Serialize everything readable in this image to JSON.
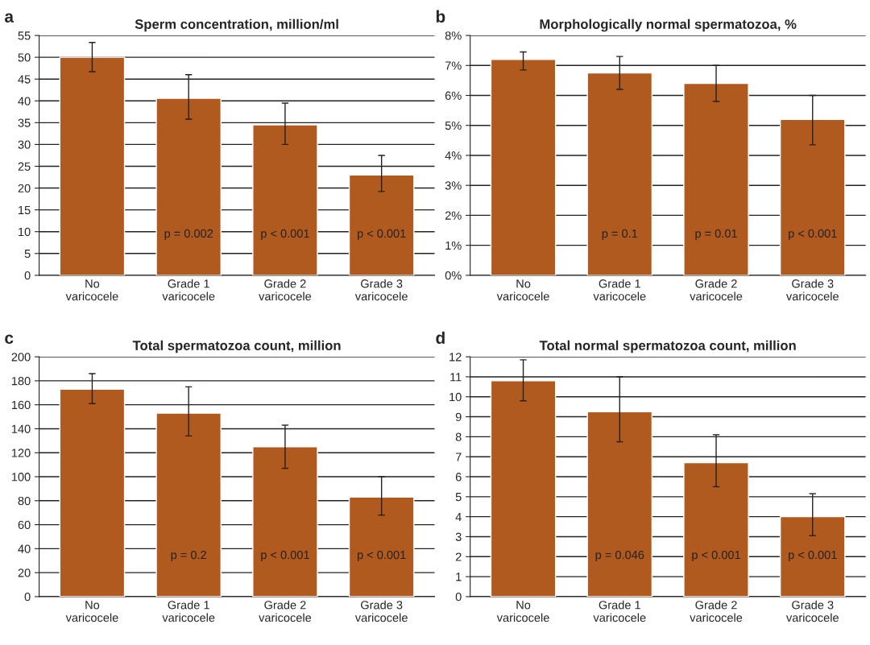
{
  "chart_data": [
    {
      "type": "bar",
      "title": "Sperm concentration, million/ml",
      "categories": [
        "No\nvaricocele",
        "Grade 1\nvaricocele",
        "Grade 2\nvaricocele",
        "Grade 3\nvaricocele"
      ],
      "values": [
        50,
        40.6,
        34.5,
        23
      ],
      "color": "#b05a20",
      "errors": [
        [
          46.7,
          53.4
        ],
        [
          35.8,
          46
        ],
        [
          30,
          39.5
        ],
        [
          19.2,
          27.5
        ]
      ],
      "ylim": [
        0,
        55
      ],
      "yticks": [
        0,
        5,
        10,
        15,
        20,
        25,
        30,
        35,
        40,
        45,
        50,
        55
      ],
      "grid": "y",
      "annotations": [
        "a",
        "p = 0.002",
        "p < 0.001",
        "p < 0.001"
      ]
    },
    {
      "type": "bar",
      "title": "Morphologically normal spermatozoa, %",
      "categories": [
        "No\nvaricocele",
        "Grade 1\nvaricocele",
        "Grade 2\nvaricocele",
        "Grade 3\nvaricocele"
      ],
      "values": [
        7.2,
        6.75,
        6.4,
        5.2
      ],
      "color": "#b05a20",
      "errors": [
        [
          6.85,
          7.45
        ],
        [
          6.2,
          7.3
        ],
        [
          5.8,
          7.0
        ],
        [
          4.35,
          6.0
        ]
      ],
      "ylim": [
        0,
        8
      ],
      "yticks": [
        {
          "value": 0,
          "label": "0%"
        },
        {
          "value": 1,
          "label": "1%"
        },
        {
          "value": 2,
          "label": "2%"
        },
        {
          "value": 3,
          "label": "3%"
        },
        {
          "value": 4,
          "label": "4%"
        },
        {
          "value": 5,
          "label": "5%"
        },
        {
          "value": 6,
          "label": "6%"
        },
        {
          "value": 7,
          "label": "7%"
        },
        {
          "value": 8,
          "label": "8%"
        }
      ],
      "grid": "y",
      "annotations": [
        "b",
        "p = 0.1",
        "p = 0.01",
        "p < 0.001"
      ]
    },
    {
      "type": "bar",
      "title": "Total spermatozoa count, million",
      "categories": [
        "No\nvaricocele",
        "Grade 1\nvaricocele",
        "Grade 2\nvaricocele",
        "Grade 3\nvaricocele"
      ],
      "values": [
        173,
        153,
        125,
        83
      ],
      "color": "#b05a20",
      "errors": [
        [
          161,
          186
        ],
        [
          134,
          175
        ],
        [
          107,
          143
        ],
        [
          68,
          100
        ]
      ],
      "ylim": [
        0,
        200
      ],
      "yticks": [
        0,
        20,
        40,
        60,
        80,
        100,
        120,
        140,
        160,
        180,
        200
      ],
      "grid": "y",
      "annotations": [
        "c",
        "p = 0.2",
        "p < 0.001",
        "p < 0.001"
      ]
    },
    {
      "type": "bar",
      "title": "Total normal spermatozoa count, million",
      "categories": [
        "No\nvaricocele",
        "Grade 1\nvaricocele",
        "Grade 2\nvaricocele",
        "Grade 3\nvaricocele"
      ],
      "values": [
        10.8,
        9.25,
        6.7,
        4.0
      ],
      "color": "#b05a20",
      "errors": [
        [
          9.8,
          11.85
        ],
        [
          7.75,
          11.0
        ],
        [
          5.5,
          8.1
        ],
        [
          3.05,
          5.15
        ]
      ],
      "ylim": [
        0,
        12
      ],
      "yticks": [
        0,
        1,
        2,
        3,
        4,
        5,
        6,
        7,
        8,
        9,
        10,
        11,
        12
      ],
      "grid": "y",
      "annotations": [
        "d",
        "p = 0.046",
        "p < 0.001",
        "p < 0.001"
      ]
    }
  ]
}
